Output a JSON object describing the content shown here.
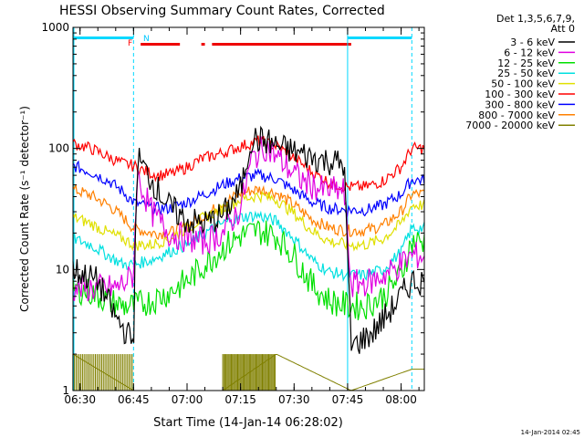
{
  "chart_data": {
    "type": "line",
    "title": "HESSI Observing Summary Count Rates, Corrected",
    "xlabel": "Start Time (14-Jan-14 06:28:02)",
    "ylabel": "Corrected Count Rate (s⁻¹ detector⁻¹)",
    "y_scale": "log",
    "ylim": [
      1,
      1000
    ],
    "xlim": [
      "06:28:02",
      "08:06:30"
    ],
    "x_tick_labels": [
      "06:30",
      "06:45",
      "07:00",
      "07:15",
      "07:30",
      "07:45",
      "08:00"
    ],
    "y_tick_labels": [
      "1",
      "10",
      "100",
      "1000"
    ],
    "legend_header": [
      "Det 1,3,5,6,7,9,",
      "Att 0"
    ],
    "legend_placement": "right",
    "footer_date": "14-Jan-2014 02:45",
    "flags": {
      "night": [
        [
          "06:28",
          "06:45"
        ],
        [
          "07:45",
          "08:03"
        ]
      ],
      "saa_label": "N",
      "flare_label": "F",
      "flare": [
        [
          "06:47",
          "06:58"
        ],
        [
          "07:04",
          "07:05"
        ],
        [
          "07:07",
          "07:46"
        ]
      ]
    },
    "series": [
      {
        "name": "3 - 6 keV",
        "color": "#000000",
        "x": [
          "06:28",
          "06:35",
          "06:40",
          "06:43",
          "06:45",
          "06:46",
          "06:50",
          "06:55",
          "07:00",
          "07:05",
          "07:10",
          "07:15",
          "07:18",
          "07:22",
          "07:27",
          "07:32",
          "07:38",
          "07:44",
          "07:46",
          "07:52",
          "07:58",
          "08:03"
        ],
        "values": [
          10,
          8,
          4,
          3,
          2.5,
          85,
          55,
          33,
          25,
          24,
          28,
          45,
          120,
          115,
          100,
          90,
          80,
          75,
          2.3,
          3,
          5,
          8
        ]
      },
      {
        "name": "6 - 12 keV",
        "color": "#e000e0",
        "x": [
          "06:28",
          "06:35",
          "06:40",
          "06:43",
          "06:45",
          "06:46",
          "06:50",
          "06:55",
          "07:00",
          "07:05",
          "07:10",
          "07:15",
          "07:18",
          "07:22",
          "07:27",
          "07:32",
          "07:38",
          "07:44",
          "07:46",
          "07:52",
          "07:58",
          "08:03"
        ],
        "values": [
          7,
          7,
          7,
          8,
          9,
          60,
          30,
          20,
          18,
          17,
          20,
          32,
          80,
          105,
          75,
          55,
          45,
          45,
          7.5,
          8,
          10,
          13
        ]
      },
      {
        "name": "12 - 25 keV",
        "color": "#00e000",
        "x": [
          "06:28",
          "06:33",
          "06:38",
          "06:42",
          "06:45",
          "06:50",
          "06:55",
          "07:00",
          "07:05",
          "07:10",
          "07:15",
          "07:20",
          "07:25",
          "07:30",
          "07:35",
          "07:40",
          "07:45",
          "07:50",
          "07:55",
          "08:00",
          "08:03"
        ],
        "values": [
          7,
          6.5,
          5.5,
          5,
          5,
          5.5,
          6.5,
          8,
          11,
          15,
          19,
          21,
          19,
          13,
          7.5,
          5.5,
          5,
          5,
          6,
          9,
          17
        ]
      },
      {
        "name": "25 - 50 keV",
        "color": "#00e0e0",
        "x": [
          "06:28",
          "06:33",
          "06:38",
          "06:42",
          "06:45",
          "06:50",
          "06:55",
          "07:00",
          "07:05",
          "07:10",
          "07:15",
          "07:20",
          "07:25",
          "07:30",
          "07:35",
          "07:40",
          "07:45",
          "07:50",
          "07:55",
          "08:00",
          "08:03"
        ],
        "values": [
          18,
          16,
          13,
          11,
          11,
          12,
          14,
          16,
          20,
          24,
          27,
          28,
          25,
          18,
          12,
          9.5,
          9,
          9,
          10,
          14,
          22
        ]
      },
      {
        "name": "50 - 100 keV",
        "color": "#e0e000",
        "x": [
          "06:28",
          "06:33",
          "06:38",
          "06:42",
          "06:45",
          "06:50",
          "06:55",
          "07:00",
          "07:05",
          "07:10",
          "07:15",
          "07:20",
          "07:25",
          "07:30",
          "07:35",
          "07:40",
          "07:45",
          "07:50",
          "07:55",
          "08:00",
          "08:03"
        ],
        "values": [
          27,
          24,
          20,
          18,
          16,
          16,
          18,
          22,
          27,
          32,
          38,
          41,
          38,
          29,
          21,
          17,
          16,
          16,
          18,
          24,
          34
        ]
      },
      {
        "name": "100 - 300 keV",
        "color": "#ff0000",
        "x": [
          "06:28",
          "06:33",
          "06:38",
          "06:42",
          "06:45",
          "06:48",
          "06:52",
          "06:56",
          "07:00",
          "07:04",
          "07:06",
          "07:10",
          "07:15",
          "07:20",
          "07:25",
          "07:30",
          "07:35",
          "07:40",
          "07:45",
          "07:50",
          "07:55",
          "08:00",
          "08:03"
        ],
        "values": [
          110,
          100,
          85,
          75,
          72,
          65,
          60,
          62,
          70,
          82,
          85,
          92,
          104,
          115,
          105,
          84,
          64,
          52,
          48,
          48,
          54,
          70,
          100
        ]
      },
      {
        "name": "300 - 800 keV",
        "color": "#0000ff",
        "x": [
          "06:28",
          "06:33",
          "06:38",
          "06:42",
          "06:45",
          "06:50",
          "06:55",
          "07:00",
          "07:05",
          "07:10",
          "07:15",
          "07:20",
          "07:25",
          "07:30",
          "07:35",
          "07:40",
          "07:45",
          "07:50",
          "07:55",
          "08:00",
          "08:03"
        ],
        "values": [
          72,
          64,
          54,
          44,
          36,
          32,
          32,
          36,
          42,
          50,
          57,
          60,
          56,
          45,
          36,
          32,
          31,
          31,
          34,
          42,
          55
        ]
      },
      {
        "name": "800 - 7000 keV",
        "color": "#ff8000",
        "x": [
          "06:28",
          "06:33",
          "06:38",
          "06:42",
          "06:45",
          "06:50",
          "06:55",
          "07:00",
          "07:05",
          "07:10",
          "07:15",
          "07:20",
          "07:25",
          "07:30",
          "07:35",
          "07:40",
          "07:45",
          "07:50",
          "07:55",
          "08:00",
          "08:03"
        ],
        "values": [
          46,
          41,
          34,
          27,
          22,
          20,
          20,
          23,
          28,
          35,
          43,
          46,
          43,
          34,
          26,
          22,
          21,
          21,
          23,
          30,
          42
        ]
      },
      {
        "name": "7000 - 20000 keV",
        "color": "#808000",
        "x": [
          "06:28",
          "06:45",
          "07:10",
          "07:25",
          "07:46",
          "08:03"
        ],
        "values": [
          2,
          1,
          1,
          2,
          1,
          1.5
        ]
      }
    ]
  }
}
